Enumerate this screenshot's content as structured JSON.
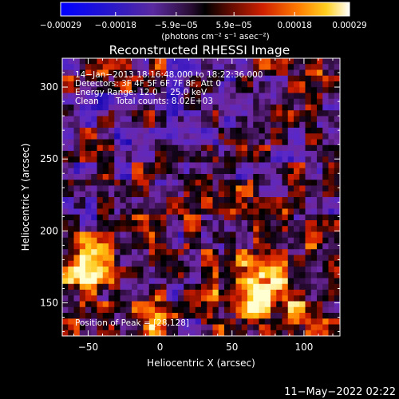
{
  "chart_data": {
    "type": "heatmap",
    "title": "Reconstructed RHESSI Image",
    "xlabel": "Heliocentric X (arcsec)",
    "ylabel": "Heliocentric Y (arcsec)",
    "xlim": [
      -68,
      125
    ],
    "ylim": [
      127,
      320
    ],
    "x_ticks": [
      -50,
      0,
      50,
      100
    ],
    "y_ticks": [
      150,
      200,
      250,
      300
    ],
    "x_tick_labels": [
      "−50",
      "0",
      "50",
      "100"
    ],
    "y_tick_labels": [
      "150",
      "200",
      "250",
      "300"
    ],
    "colorbar": {
      "range": [
        -0.00029,
        0.00029
      ],
      "tick_labels": [
        "−0.00029",
        "−0.00018",
        "−5.9e−05",
        "5.9e−05",
        "0.00018",
        "0.00029"
      ],
      "unit_label": "(photons cm⁻² s⁻¹ asec⁻²)"
    },
    "annotations": [
      "14−Jan−2013 18:16:48.000 to 18:22:36.000",
      "Detectors: 3F 4F 5F 6F 7F 8F, Att 0",
      "Energy Range: 12.0 − 25.0 keV",
      "Clean",
      "Total counts: 8.02E+03"
    ],
    "peak_label": "Position of Peak = [28,128]",
    "peak": [
      28,
      128
    ]
  },
  "footer": {
    "timestamp": "11−May−2022 02:22"
  }
}
